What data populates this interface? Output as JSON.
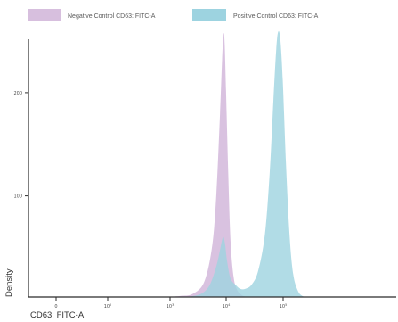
{
  "chart_data": {
    "type": "area",
    "xlabel": "CD63: FITC-A",
    "ylabel": "Density",
    "xscale": "log",
    "xlim": [
      "1",
      "1e5"
    ],
    "ylim": [
      0,
      250
    ],
    "x_ticks": [
      "0",
      "10^2",
      "10^3",
      "10^4",
      "10^5"
    ],
    "y_ticks": [
      100,
      200
    ],
    "grid": false,
    "legend_position": "top",
    "series": [
      {
        "name": "Negative Control CD63: FITC-A",
        "color": "#d7bfde",
        "points": [
          [
            80,
            0
          ],
          [
            150,
            1
          ],
          [
            250,
            3
          ],
          [
            400,
            15
          ],
          [
            550,
            50
          ],
          [
            650,
            100
          ],
          [
            750,
            175
          ],
          [
            820,
            230
          ],
          [
            870,
            255
          ],
          [
            910,
            245
          ],
          [
            960,
            200
          ],
          [
            1050,
            120
          ],
          [
            1150,
            55
          ],
          [
            1300,
            20
          ],
          [
            1500,
            7
          ],
          [
            1800,
            2
          ],
          [
            2200,
            0
          ]
        ]
      },
      {
        "name": "Positive Control CD63: FITC-A",
        "color": "#9dd3e0",
        "points": [
          [
            200,
            0
          ],
          [
            350,
            3
          ],
          [
            500,
            12
          ],
          [
            650,
            30
          ],
          [
            750,
            45
          ],
          [
            850,
            58
          ],
          [
            920,
            52
          ],
          [
            1000,
            35
          ],
          [
            1150,
            18
          ],
          [
            1400,
            12
          ],
          [
            1700,
            8
          ],
          [
            2100,
            8
          ],
          [
            2700,
            12
          ],
          [
            3500,
            25
          ],
          [
            4600,
            60
          ],
          [
            5600,
            120
          ],
          [
            6500,
            190
          ],
          [
            7300,
            240
          ],
          [
            7900,
            257
          ],
          [
            8600,
            250
          ],
          [
            9500,
            210
          ],
          [
            10800,
            130
          ],
          [
            12500,
            60
          ],
          [
            14500,
            22
          ],
          [
            17500,
            6
          ],
          [
            21000,
            1
          ],
          [
            26000,
            0
          ]
        ]
      }
    ]
  }
}
